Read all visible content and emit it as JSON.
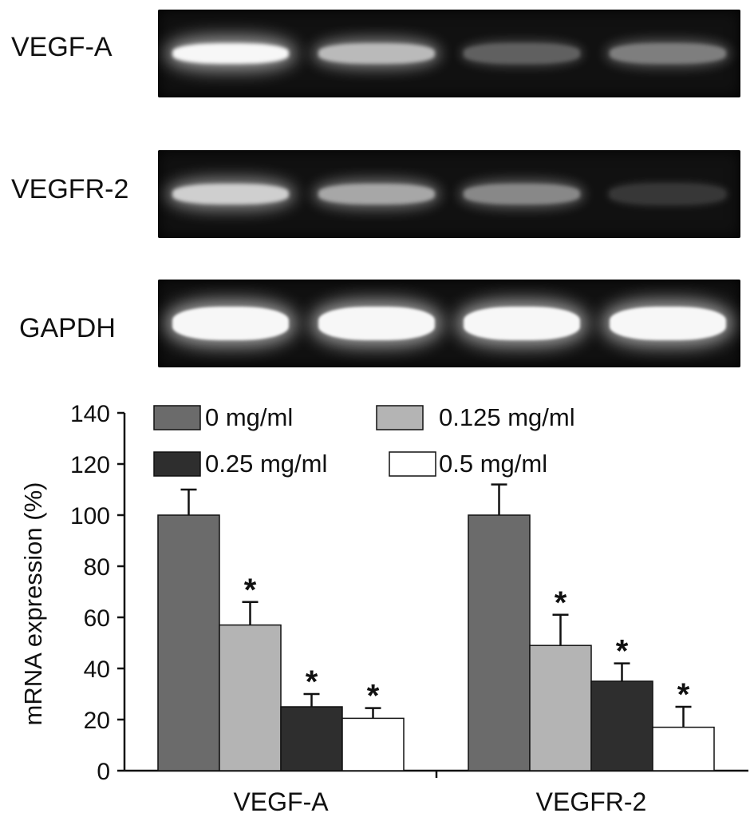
{
  "gel": {
    "lanes": 4,
    "rows": [
      {
        "label": "VEGF-A",
        "intensities": [
          1.0,
          0.7,
          0.25,
          0.4
        ]
      },
      {
        "label": "VEGFR-2",
        "intensities": [
          0.8,
          0.6,
          0.45,
          0.05
        ]
      },
      {
        "label": "GAPDH",
        "intensities": [
          1.0,
          1.0,
          1.0,
          1.0
        ]
      }
    ]
  },
  "chart_data": {
    "type": "bar",
    "categories": [
      "VEGF-A",
      "VEGFR-2"
    ],
    "ylabel": "mRNA expression (%)",
    "xlabel": "",
    "ylim": [
      0,
      140
    ],
    "yticks": [
      "0",
      "20",
      "40",
      "60",
      "80",
      "100",
      "120",
      "140"
    ],
    "grid": false,
    "legend_placement": "top",
    "series": [
      {
        "name": "0 mg/ml",
        "color": "#6b6b6b",
        "values": [
          100,
          100
        ],
        "errors": [
          10,
          12
        ],
        "significant": [
          false,
          false
        ]
      },
      {
        "name": "0.125 mg/ml",
        "color": "#b4b4b4",
        "values": [
          57,
          49
        ],
        "errors": [
          9,
          12
        ],
        "significant": [
          true,
          true
        ]
      },
      {
        "name": "0.25 mg/ml",
        "color": "#2e2e2e",
        "values": [
          25,
          35
        ],
        "errors": [
          5,
          7
        ],
        "significant": [
          true,
          true
        ]
      },
      {
        "name": "0.5 mg/ml",
        "color": "#ffffff",
        "values": [
          20.5,
          17
        ],
        "errors": [
          4,
          8
        ],
        "significant": [
          true,
          true
        ]
      }
    ],
    "significance_marker": "*"
  }
}
